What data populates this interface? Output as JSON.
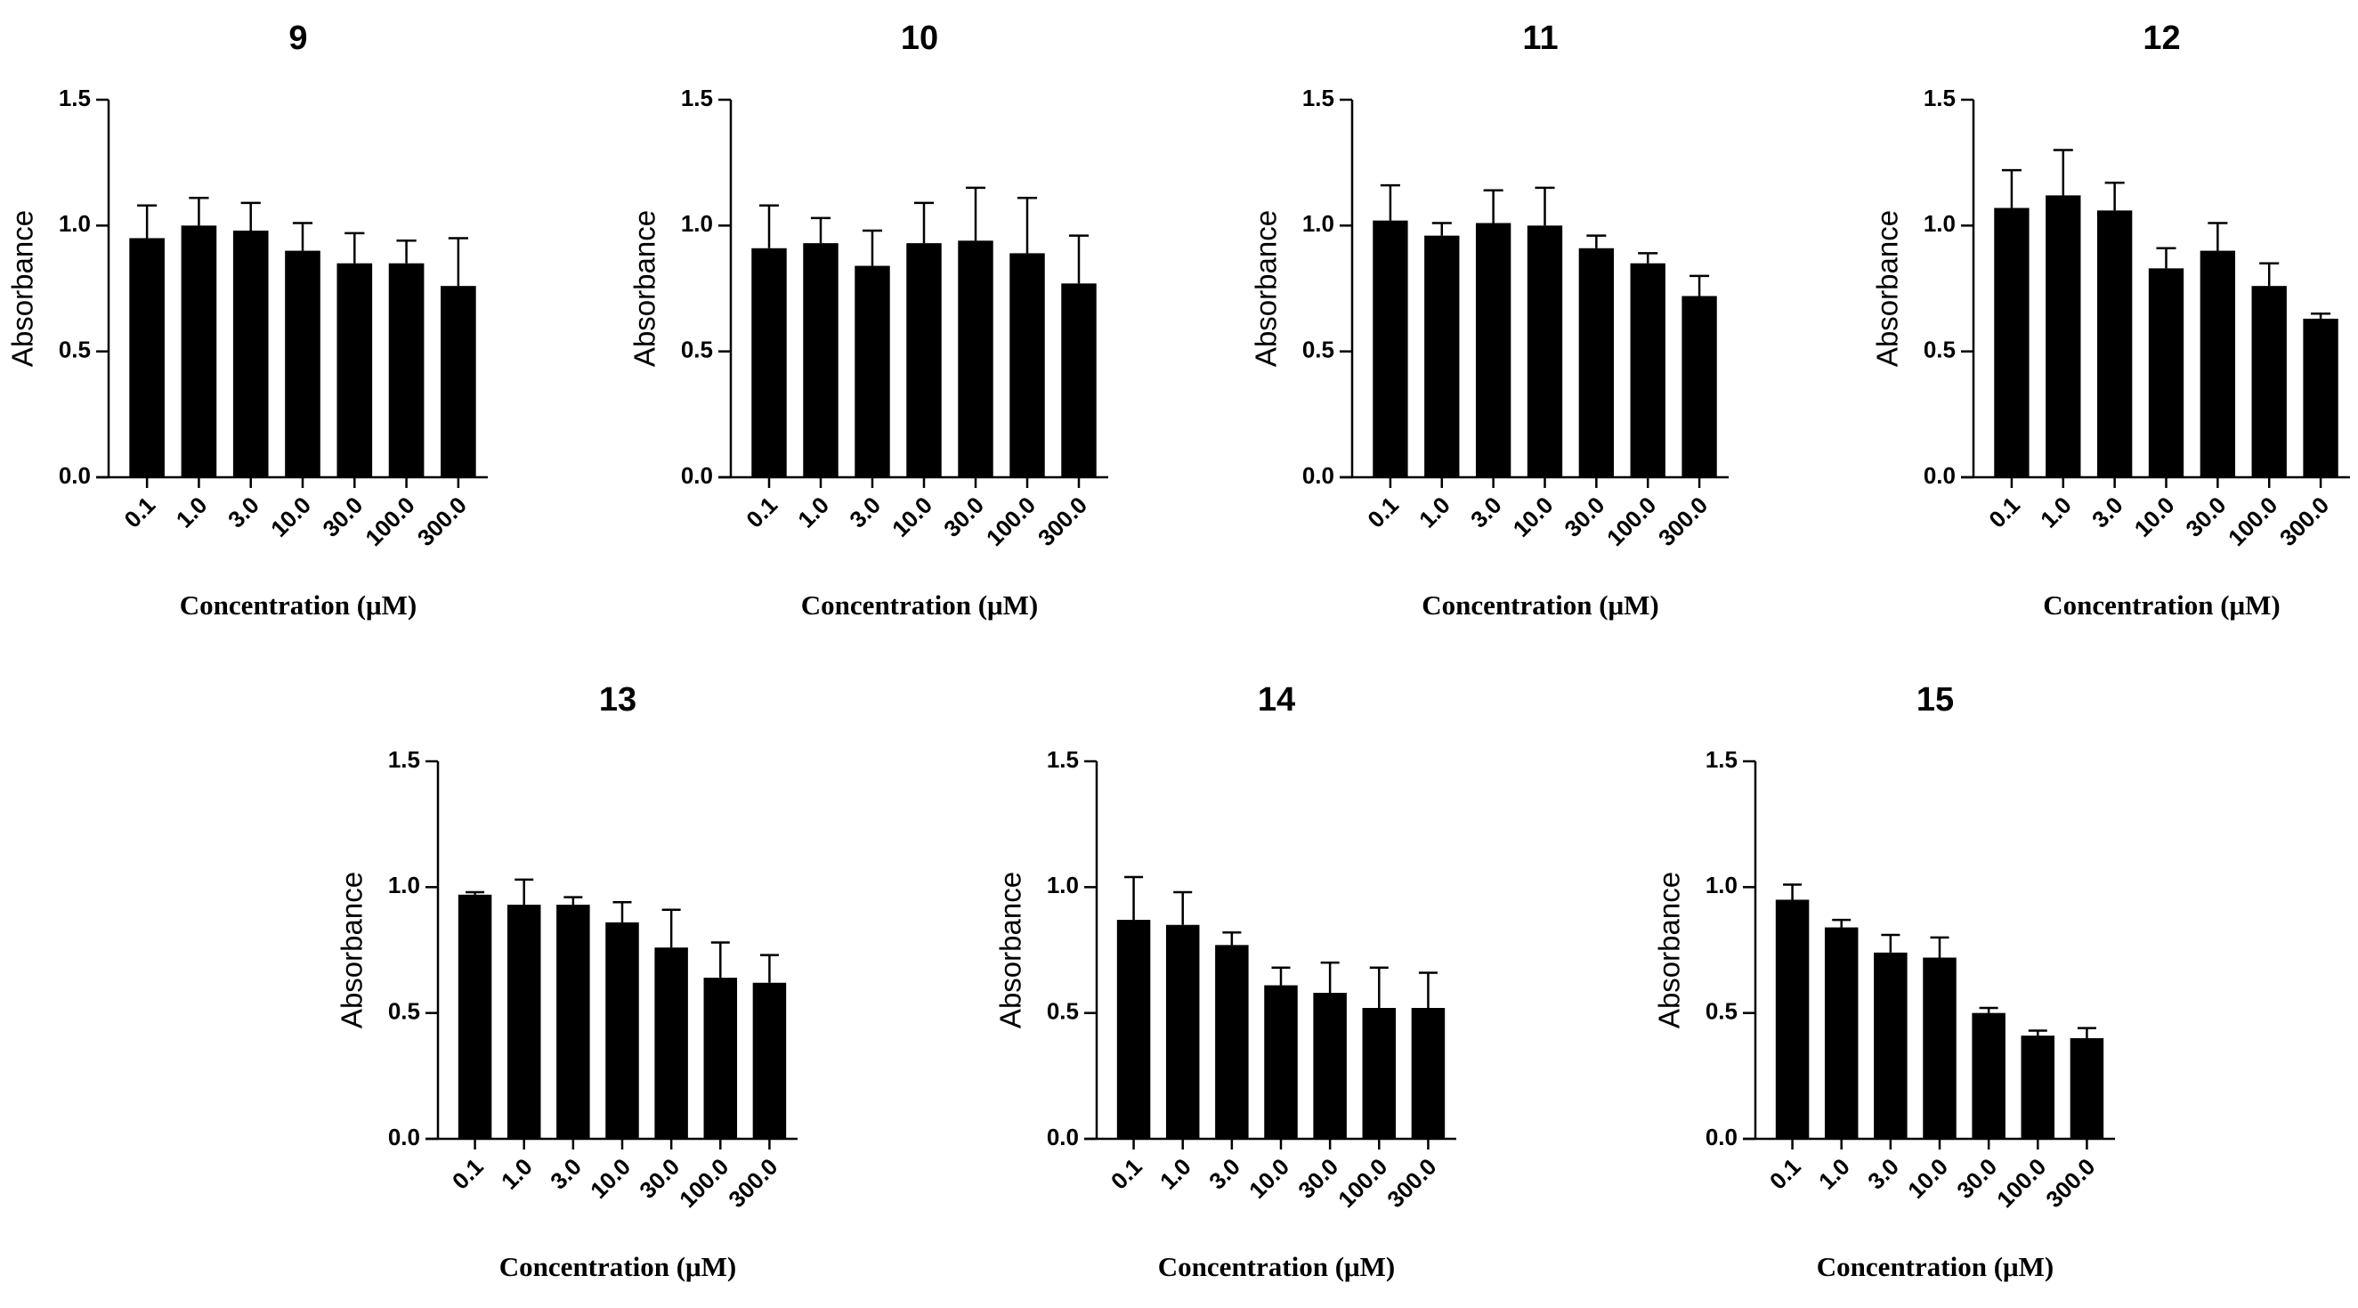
{
  "chart_data": [
    {
      "type": "bar",
      "title": "9",
      "xlabel": "Concentration (μM)",
      "ylabel": "Absorbance",
      "categories": [
        "0.1",
        "1.0",
        "3.0",
        "10.0",
        "30.0",
        "100.0",
        "300.0"
      ],
      "yticks": [
        "0.0",
        "0.5",
        "1.0",
        "1.5"
      ],
      "ylim": [
        0,
        1.5
      ],
      "values": [
        0.95,
        1.0,
        0.98,
        0.9,
        0.85,
        0.85,
        0.76
      ],
      "errors": [
        0.13,
        0.11,
        0.11,
        0.11,
        0.12,
        0.09,
        0.19
      ],
      "bar_color": "#000000"
    },
    {
      "type": "bar",
      "title": "10",
      "xlabel": "Concentration (μM)",
      "ylabel": "Absorbance",
      "categories": [
        "0.1",
        "1.0",
        "3.0",
        "10.0",
        "30.0",
        "100.0",
        "300.0"
      ],
      "yticks": [
        "0.0",
        "0.5",
        "1.0",
        "1.5"
      ],
      "ylim": [
        0,
        1.5
      ],
      "values": [
        0.91,
        0.93,
        0.84,
        0.93,
        0.94,
        0.89,
        0.77
      ],
      "errors": [
        0.17,
        0.1,
        0.14,
        0.16,
        0.21,
        0.22,
        0.19
      ],
      "bar_color": "#000000"
    },
    {
      "type": "bar",
      "title": "11",
      "xlabel": "Concentration (μM)",
      "ylabel": "Absorbance",
      "categories": [
        "0.1",
        "1.0",
        "3.0",
        "10.0",
        "30.0",
        "100.0",
        "300.0"
      ],
      "yticks": [
        "0.0",
        "0.5",
        "1.0",
        "1.5"
      ],
      "ylim": [
        0,
        1.5
      ],
      "values": [
        1.02,
        0.96,
        1.01,
        1.0,
        0.91,
        0.85,
        0.72
      ],
      "errors": [
        0.14,
        0.05,
        0.13,
        0.15,
        0.05,
        0.04,
        0.08
      ],
      "bar_color": "#000000"
    },
    {
      "type": "bar",
      "title": "12",
      "xlabel": "Concentration (μM)",
      "ylabel": "Absorbance",
      "categories": [
        "0.1",
        "1.0",
        "3.0",
        "10.0",
        "30.0",
        "100.0",
        "300.0"
      ],
      "yticks": [
        "0.0",
        "0.5",
        "1.0",
        "1.5"
      ],
      "ylim": [
        0,
        1.5
      ],
      "values": [
        1.07,
        1.12,
        1.06,
        0.83,
        0.9,
        0.76,
        0.63
      ],
      "errors": [
        0.15,
        0.18,
        0.11,
        0.08,
        0.11,
        0.09,
        0.02
      ],
      "bar_color": "#000000"
    },
    {
      "type": "bar",
      "title": "13",
      "xlabel": "Concentration (μM)",
      "ylabel": "Absorbance",
      "categories": [
        "0.1",
        "1.0",
        "3.0",
        "10.0",
        "30.0",
        "100.0",
        "300.0"
      ],
      "yticks": [
        "0.0",
        "0.5",
        "1.0",
        "1.5"
      ],
      "ylim": [
        0,
        1.5
      ],
      "values": [
        0.97,
        0.93,
        0.93,
        0.86,
        0.76,
        0.64,
        0.62
      ],
      "errors": [
        0.01,
        0.1,
        0.03,
        0.08,
        0.15,
        0.14,
        0.11
      ],
      "bar_color": "#000000"
    },
    {
      "type": "bar",
      "title": "14",
      "xlabel": "Concentration (μM)",
      "ylabel": "Absorbance",
      "categories": [
        "0.1",
        "1.0",
        "3.0",
        "10.0",
        "30.0",
        "100.0",
        "300.0"
      ],
      "yticks": [
        "0.0",
        "0.5",
        "1.0",
        "1.5"
      ],
      "ylim": [
        0,
        1.5
      ],
      "values": [
        0.87,
        0.85,
        0.77,
        0.61,
        0.58,
        0.52,
        0.52
      ],
      "errors": [
        0.17,
        0.13,
        0.05,
        0.07,
        0.12,
        0.16,
        0.14
      ],
      "bar_color": "#000000"
    },
    {
      "type": "bar",
      "title": "15",
      "xlabel": "Concentration (μM)",
      "ylabel": "Absorbance",
      "categories": [
        "0.1",
        "1.0",
        "3.0",
        "10.0",
        "30.0",
        "100.0",
        "300.0"
      ],
      "yticks": [
        "0.0",
        "0.5",
        "1.0",
        "1.5"
      ],
      "ylim": [
        0,
        1.5
      ],
      "values": [
        0.95,
        0.84,
        0.74,
        0.72,
        0.5,
        0.41,
        0.4
      ],
      "errors": [
        0.06,
        0.03,
        0.07,
        0.08,
        0.02,
        0.02,
        0.04
      ],
      "bar_color": "#000000"
    }
  ]
}
